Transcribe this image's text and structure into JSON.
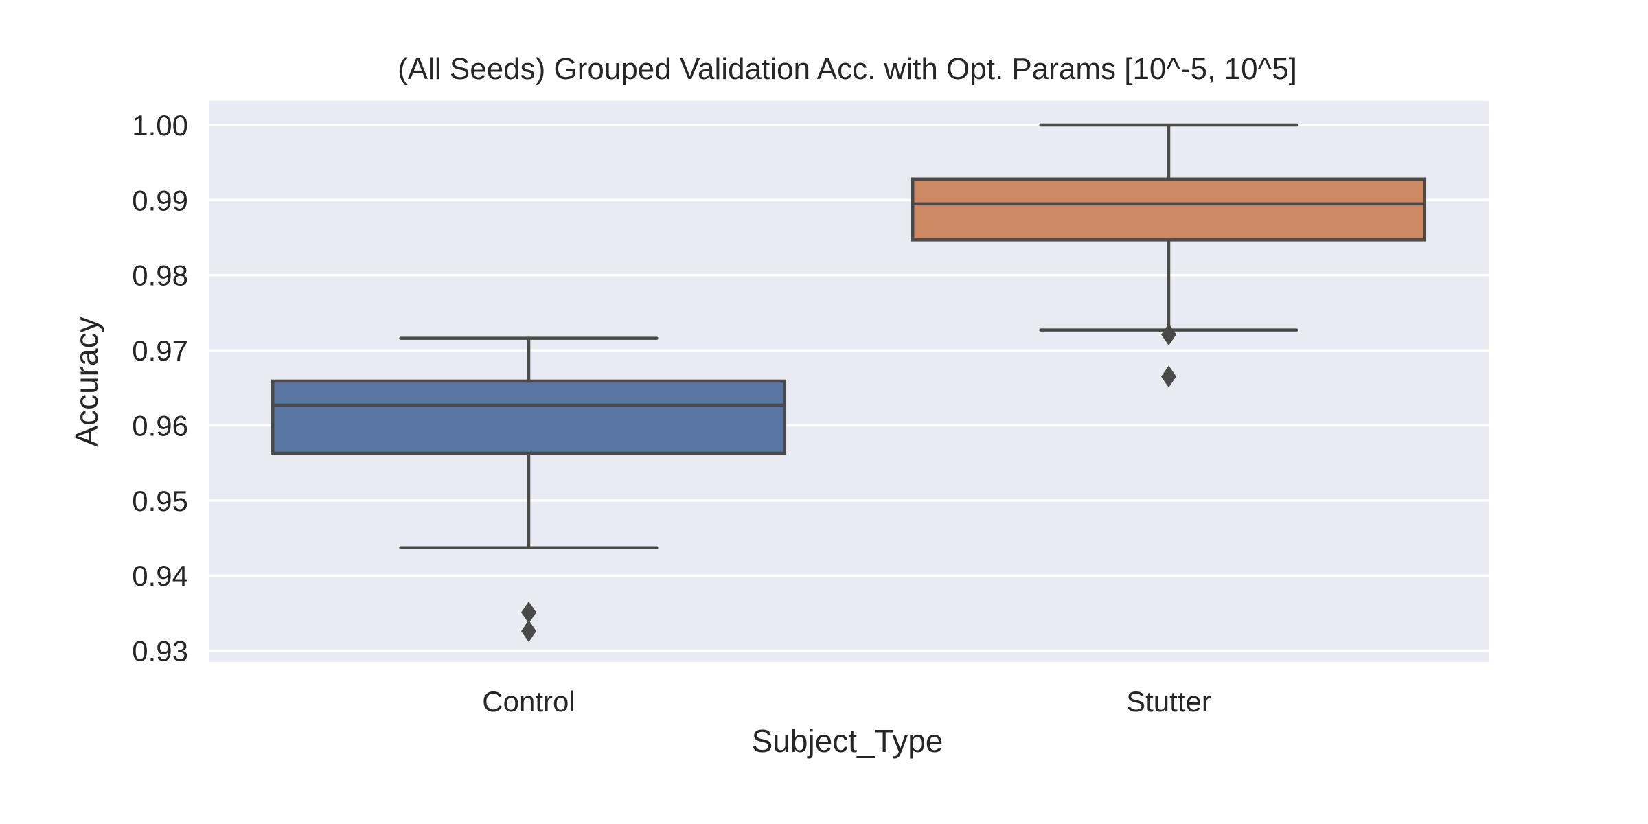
{
  "chart_data": {
    "type": "box",
    "title": "(All Seeds) Grouped Validation Acc. with Opt. Params [10^-5, 10^5]",
    "xlabel": "Subject_Type",
    "ylabel": "Accuracy",
    "ylim": [
      0.9285,
      1.0032
    ],
    "yticks": [
      0.93,
      0.94,
      0.95,
      0.96,
      0.97,
      0.98,
      0.99,
      1.0
    ],
    "ytick_labels": [
      "0.93",
      "0.94",
      "0.95",
      "0.96",
      "0.97",
      "0.98",
      "0.99",
      "1.00"
    ],
    "grid": true,
    "categories": [
      "Control",
      "Stutter"
    ],
    "boxes": [
      {
        "category": "Control",
        "whisker_low": 0.9437,
        "q1": 0.9563,
        "median": 0.9627,
        "q3": 0.9659,
        "whisker_high": 0.9716,
        "outliers": [
          0.9326,
          0.9351
        ],
        "color": "#5875a4"
      },
      {
        "category": "Stutter",
        "whisker_low": 0.9727,
        "q1": 0.9847,
        "median": 0.9895,
        "q3": 0.9928,
        "whisker_high": 1.0,
        "outliers": [
          0.9721,
          0.9665
        ],
        "color": "#cc8963"
      }
    ],
    "colors": {
      "background": "#eaeaf2",
      "grid": "#ffffff",
      "line": "#4a4a4a",
      "text": "#262626"
    }
  }
}
